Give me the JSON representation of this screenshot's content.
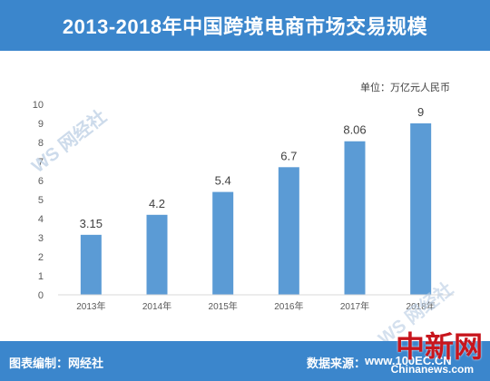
{
  "header": {
    "title": "2013-2018年中国跨境电商市场交易规模"
  },
  "chart_data": {
    "type": "bar",
    "categories": [
      "2013年",
      "2014年",
      "2015年",
      "2016年",
      "2017年",
      "2018年"
    ],
    "values": [
      3.15,
      4.2,
      5.4,
      6.7,
      8.06,
      9
    ],
    "value_labels": [
      "3.15",
      "4.2",
      "5.4",
      "6.7",
      "8.06",
      "9"
    ],
    "title": "",
    "xlabel": "",
    "ylabel": "",
    "unit": "单位：万亿元人民币",
    "ylim": [
      0,
      10
    ],
    "yticks": [
      0,
      1,
      2,
      3,
      4,
      5,
      6,
      7,
      8,
      9,
      10
    ],
    "grid": false,
    "bar_color": "#5b9bd5"
  },
  "footer": {
    "credit": "图表编制：网经社",
    "source": "数据来源：",
    "source_site": "www.100EC.CN",
    "logo": "中新网",
    "site": "Chinanews.com"
  },
  "watermark": {
    "text": "WS 网经社"
  },
  "colors": {
    "title_bar": "#3b86cc",
    "footer_bar": "#3b86cc",
    "bar": "#5b9bd5",
    "axis_text": "#595959",
    "logo": "#c8161d"
  }
}
